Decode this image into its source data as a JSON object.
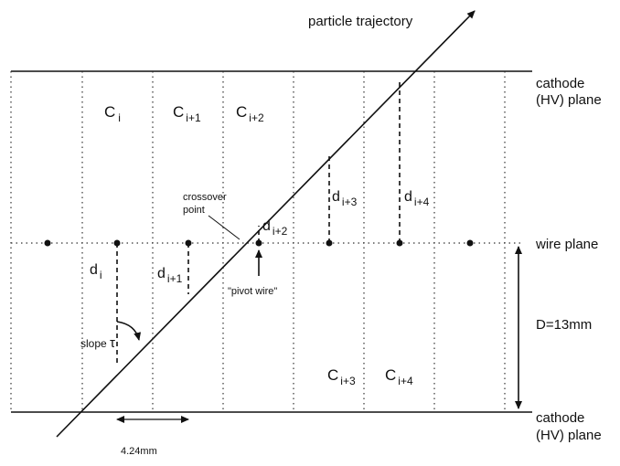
{
  "header": {
    "title": "particle trajectory"
  },
  "planes": {
    "top": [
      "cathode",
      "(HV) plane"
    ],
    "wire": "wire plane",
    "bottom": [
      "cathode",
      "(HV) plane"
    ]
  },
  "cells": [
    {
      "base": "C",
      "sub": "i"
    },
    {
      "base": "C",
      "sub": "i+1"
    },
    {
      "base": "C",
      "sub": "i+2"
    },
    {
      "base": "C",
      "sub": "i+3"
    },
    {
      "base": "C",
      "sub": "i+4"
    }
  ],
  "distances": [
    {
      "base": "d",
      "sub": "i"
    },
    {
      "base": "d",
      "sub": "i+1"
    },
    {
      "base": "d",
      "sub": "i+2"
    },
    {
      "base": "d",
      "sub": "i+3"
    },
    {
      "base": "d",
      "sub": "i+4"
    }
  ],
  "annotations": {
    "crossover": [
      "crossover",
      "point"
    ],
    "pivot": "\"pivot wire\"",
    "slope": "slope",
    "tau": "τ",
    "gap": "D=13mm",
    "pitch": "4.24mm"
  }
}
